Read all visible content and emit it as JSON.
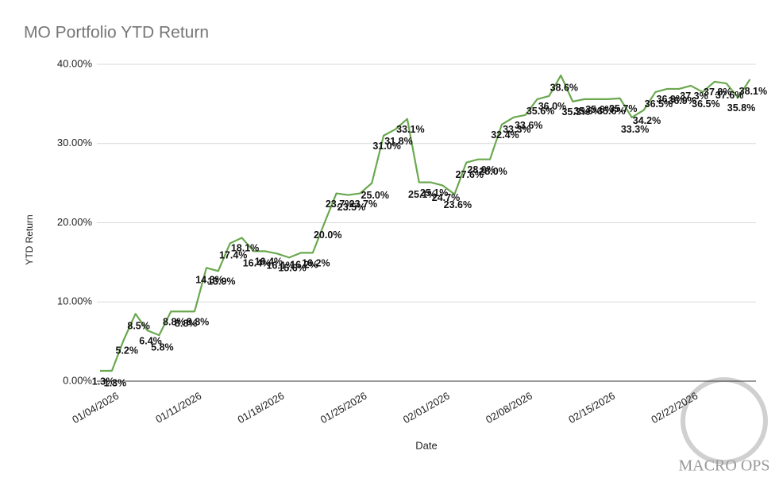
{
  "chart_data": {
    "type": "line",
    "title": "MO Portfolio YTD Return",
    "x_label": "Date",
    "y_label": "YTD Return",
    "watermark": "MACRO OPS",
    "categories": [
      null,
      "01/04/2026",
      null,
      null,
      null,
      null,
      null,
      null,
      "01/11/2026",
      null,
      null,
      null,
      null,
      null,
      null,
      "01/18/2026",
      null,
      null,
      null,
      null,
      null,
      null,
      "01/25/2026",
      null,
      null,
      null,
      null,
      null,
      null,
      "02/01/2026",
      null,
      null,
      null,
      null,
      null,
      null,
      "02/08/2026",
      null,
      null,
      null,
      null,
      null,
      null,
      "02/15/2026",
      null,
      null,
      null,
      null,
      null,
      null,
      "02/22/2026",
      null,
      null,
      null,
      null,
      null
    ],
    "series": [
      {
        "name": "YTD Return",
        "color": "#6aa84f",
        "values": [
          1.3,
          1.3,
          5.2,
          8.5,
          6.4,
          5.8,
          8.8,
          8.8,
          8.8,
          14.3,
          13.9,
          17.4,
          18.1,
          16.4,
          16.4,
          16.1,
          15.6,
          16.2,
          16.2,
          20.0,
          23.7,
          23.5,
          23.7,
          25.0,
          31.0,
          31.8,
          33.1,
          25.1,
          25.1,
          24.7,
          23.6,
          27.6,
          28.0,
          28.0,
          32.4,
          33.3,
          33.6,
          35.6,
          36.0,
          38.6,
          35.3,
          35.6,
          35.6,
          35.6,
          35.7,
          33.3,
          34.2,
          36.5,
          36.9,
          36.9,
          37.3,
          36.5,
          37.8,
          37.6,
          35.8,
          38.1
        ],
        "value_labels": [
          "1.3%",
          "1.3%",
          "5.2%",
          "8.5%",
          "6.4%",
          "5.8%",
          "8.8%",
          "8.8%",
          "8.8%",
          "14.3%",
          "13.9%",
          "17.4%",
          "18.1%",
          "16.4%",
          "16.4%",
          "16.1%",
          "15.6%",
          "16.2%",
          "16.2%",
          "20.0%",
          "23.7%",
          "23.5%",
          "23.7%",
          "25.0%",
          "31.0%",
          "31.8%",
          "33.1%",
          "25.1%",
          "25.1%",
          "24.7%",
          "23.6%",
          "27.6%",
          "28.0%",
          "28.0%",
          "32.4%",
          "33.3%",
          "33.6%",
          "35.6%",
          "36.0%",
          "38.6%",
          "35.3%",
          "35.6%",
          "35.6%",
          "35.6%",
          "35.7%",
          "33.3%",
          "34.2%",
          "36.5%",
          "36.9%",
          "36.9%",
          "37.3%",
          "36.5%",
          "37.8%",
          "37.6%",
          "35.8%",
          "38.1%"
        ]
      }
    ],
    "ylim": [
      0,
      40
    ],
    "yticks": [
      {
        "value": 0,
        "label": "0.00%"
      },
      {
        "value": 10,
        "label": "10.00%"
      },
      {
        "value": 20,
        "label": "20.00%"
      },
      {
        "value": 30,
        "label": "30.00%"
      },
      {
        "value": 40,
        "label": "40.00%"
      }
    ],
    "grid": true
  }
}
